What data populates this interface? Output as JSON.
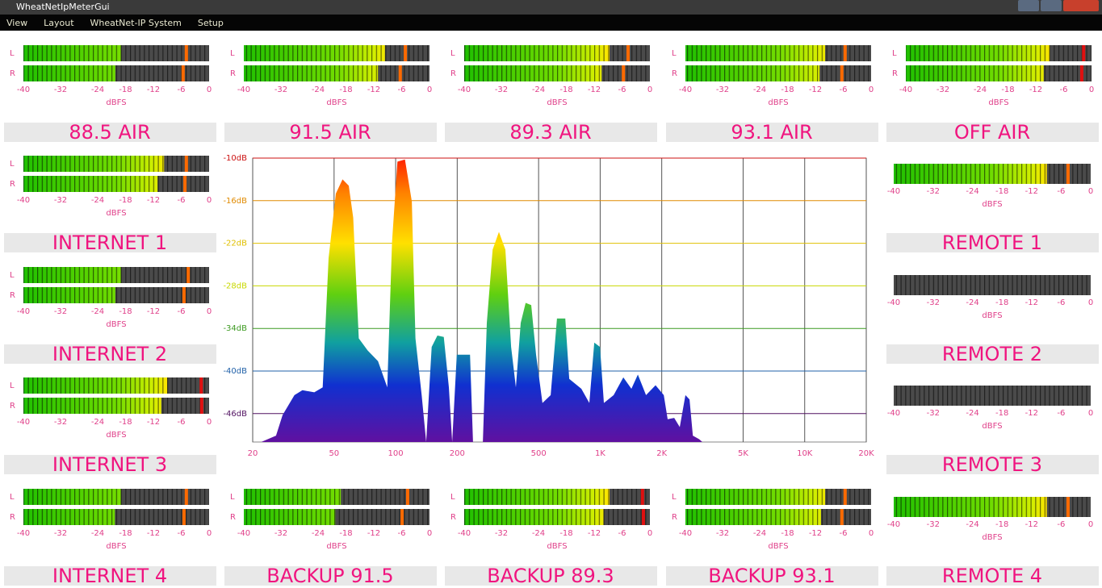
{
  "window": {
    "title": "WheatNetIpMeterGui"
  },
  "menu": [
    "View",
    "Layout",
    "WheatNet-IP System",
    "Setup"
  ],
  "meter_scale": {
    "range": [
      -40,
      0
    ],
    "ticks": [
      -40,
      -32,
      -24,
      -18,
      -12,
      -6,
      0
    ],
    "unit": "dBFS",
    "channels": [
      "L",
      "R"
    ]
  },
  "meters": [
    {
      "label": "88.5 AIR",
      "levels": [
        -19.0,
        -20.2
      ],
      "peaks": [
        -4.9,
        -5.6
      ]
    },
    {
      "label": "91.5 AIR",
      "levels": [
        -9.6,
        -11.1
      ],
      "peaks": [
        -5.2,
        -6.3
      ]
    },
    {
      "label": "89.3 AIR",
      "levels": [
        -8.7,
        -10.4
      ],
      "peaks": [
        -4.7,
        -5.7
      ]
    },
    {
      "label": "93.1 AIR",
      "levels": [
        -9.9,
        -11.1
      ],
      "peaks": [
        -5.6,
        -6.3
      ]
    },
    {
      "label": "OFF AIR",
      "levels": [
        -9.0,
        -10.3
      ],
      "peaks": [
        -1.7,
        -2.1
      ]
    },
    {
      "label": "INTERNET 1",
      "levels": [
        -9.7,
        -11.1
      ],
      "peaks": [
        -4.9,
        -5.2
      ]
    },
    {
      "label": "REMOTE 1",
      "levels": [
        -8.9
      ],
      "peaks": [
        -4.6
      ]
    },
    {
      "label": "INTERNET 2",
      "levels": [
        -19.0,
        -20.2
      ],
      "peaks": [
        -4.5,
        -5.4
      ]
    },
    {
      "label": "REMOTE 2",
      "levels": [
        null
      ],
      "peaks": [
        null
      ]
    },
    {
      "label": "INTERNET 3",
      "levels": [
        -9.0,
        -10.3
      ],
      "peaks": [
        -1.7,
        -1.6
      ]
    },
    {
      "label": "REMOTE 3",
      "levels": [
        null
      ],
      "peaks": [
        null
      ]
    },
    {
      "label": "INTERNET 4",
      "levels": [
        -19.0,
        -20.3
      ],
      "peaks": [
        -4.9,
        -5.4
      ]
    },
    {
      "label": "BACKUP 91.5",
      "levels": [
        -19.1,
        -20.3
      ],
      "peaks": [
        -4.7,
        -5.9
      ]
    },
    {
      "label": "BACKUP 89.3",
      "levels": [
        -8.7,
        -10.0
      ],
      "peaks": [
        -1.6,
        -1.4
      ]
    },
    {
      "label": "BACKUP 93.1",
      "levels": [
        -9.9,
        -10.8
      ],
      "peaks": [
        -5.6,
        -6.3
      ]
    },
    {
      "label": "REMOTE 4",
      "levels": [
        -8.9
      ],
      "peaks": [
        -4.6
      ]
    }
  ],
  "chart_data": {
    "type": "area",
    "log_x": true,
    "grid": true,
    "x": [
      22,
      26,
      28,
      32,
      35,
      40,
      44,
      47,
      51,
      55,
      59,
      62,
      66,
      73,
      82,
      91,
      96,
      102,
      111,
      120,
      125,
      134,
      141,
      150,
      160,
      172,
      182,
      189,
      199,
      231,
      239,
      267,
      279,
      298,
      320,
      344,
      367,
      387,
      409,
      432,
      460,
      486,
      522,
      573,
      615,
      675,
      706,
      809,
      885,
      936,
      998,
      1043,
      1164,
      1298,
      1422,
      1528,
      1675,
      1866,
      2046,
      2138,
      2302,
      2450,
      2612,
      2736,
      2838,
      3048,
      3160
    ],
    "values": [
      -50,
      -49.1,
      -46.2,
      -43.4,
      -42.7,
      -43.0,
      -42.3,
      -24.1,
      -15.0,
      -13.0,
      -13.9,
      -18.4,
      -35.4,
      -37.1,
      -38.6,
      -42.3,
      -21.8,
      -10.5,
      -10.2,
      -16.1,
      -35.4,
      -43.4,
      -50,
      -36.6,
      -35.0,
      -35.2,
      -42.3,
      -50,
      -37.7,
      -37.7,
      -50,
      -50,
      -33.2,
      -22.9,
      -20.4,
      -22.9,
      -36.6,
      -42.3,
      -33.2,
      -30.4,
      -30.7,
      -37.7,
      -44.5,
      -43.4,
      -32.6,
      -32.6,
      -41.1,
      -42.5,
      -44.5,
      -36.0,
      -36.6,
      -44.5,
      -43.4,
      -40.9,
      -42.5,
      -40.5,
      -43.4,
      -42.0,
      -43.4,
      -46.8,
      -46.6,
      -47.9,
      -43.4,
      -44.0,
      -49.1,
      -49.6,
      -50
    ],
    "xlim": [
      20,
      20000
    ],
    "xticks": [
      20,
      50,
      100,
      200,
      500,
      {
        "value": 1000,
        "label": "1K"
      },
      {
        "value": 2000,
        "label": "2K"
      },
      {
        "value": 5000,
        "label": "5K"
      },
      {
        "value": 10000,
        "label": "10K"
      },
      {
        "value": 20000,
        "label": "20K"
      }
    ],
    "ylim": [
      -50,
      -10
    ],
    "yticks": [
      {
        "value": -10,
        "label": "-10dB"
      },
      {
        "value": -16,
        "label": "-16dB"
      },
      {
        "value": -22,
        "label": "-22dB"
      },
      {
        "value": -28,
        "label": "-28dB"
      },
      {
        "value": -34,
        "label": "-34dB"
      },
      {
        "value": -40,
        "label": "-40dB"
      },
      {
        "value": -46,
        "label": "-46dB"
      }
    ],
    "grid_colors": [
      "#cc1010",
      "#e08a00",
      "#e0c000",
      "#c8d800",
      "#3c9a20",
      "#2060a8",
      "#501060"
    ]
  }
}
